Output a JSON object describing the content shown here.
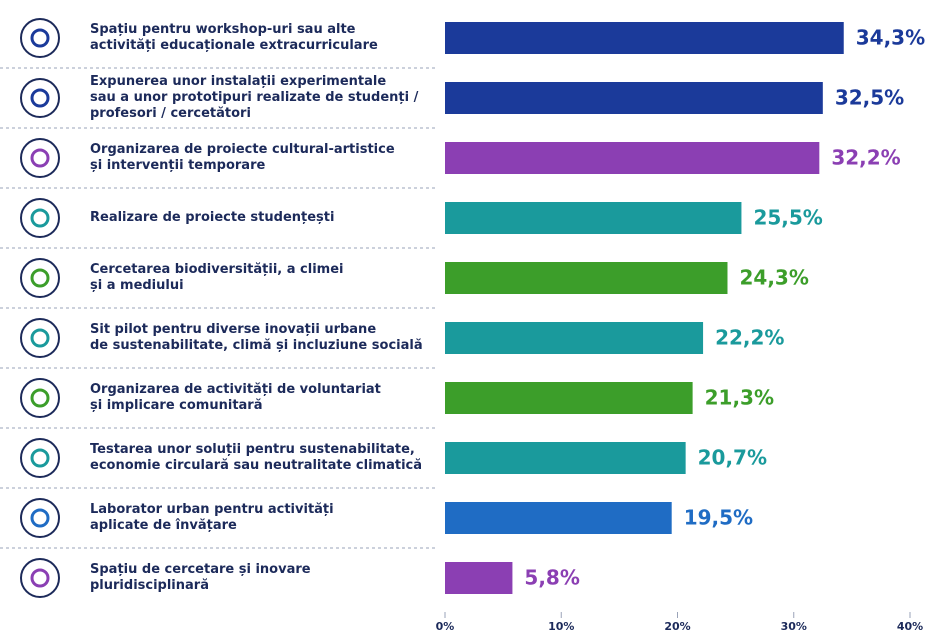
{
  "chart_data": {
    "type": "bar",
    "orientation": "horizontal",
    "categories": [
      "Spațiu pentru workshop-uri sau alte\nactivități educaționale extracurriculare",
      "Expunerea unor instalații experimentale\nsau a unor prototipuri realizate de studenți /\nprofesori / cercetători",
      "Organizarea de proiecte cultural-artistice\nși intervenții temporare",
      "Realizare de proiecte studențești",
      "Cercetarea biodiversității, a climei\nși a mediului",
      "Sit pilot pentru diverse inovații urbane\nde sustenabilitate, climă și incluziune socială",
      "Organizarea de activități de voluntariat\nși implicare comunitară",
      "Testarea unor soluții pentru sustenabilitate,\neconomie circulară sau neutralitate climatică",
      "Laborator urban pentru activități\naplicate de învățare",
      "Spațiu de cercetare și inovare\npluridisciplinară"
    ],
    "values": [
      34.3,
      32.5,
      32.2,
      25.5,
      24.3,
      22.2,
      21.3,
      20.7,
      19.5,
      5.8
    ],
    "value_labels": [
      "34,3%",
      "32,5%",
      "32,2%",
      "25,5%",
      "24,3%",
      "22,2%",
      "21,3%",
      "20,7%",
      "19,5%",
      "5,8%"
    ],
    "colors": [
      "#1b3a9a",
      "#1b3a9a",
      "#8b3fb3",
      "#1a9a9c",
      "#3c9e2a",
      "#1a9a9c",
      "#3c9e2a",
      "#1a9a9c",
      "#1f6cc4",
      "#8b3fb3"
    ],
    "xlim": [
      0,
      40
    ],
    "xticks": [
      {
        "value": 0,
        "label": "0%"
      },
      {
        "value": 10,
        "label": "10%"
      },
      {
        "value": 20,
        "label": "20%"
      },
      {
        "value": 30,
        "label": "30%"
      },
      {
        "value": 40,
        "label": "40%"
      }
    ]
  }
}
